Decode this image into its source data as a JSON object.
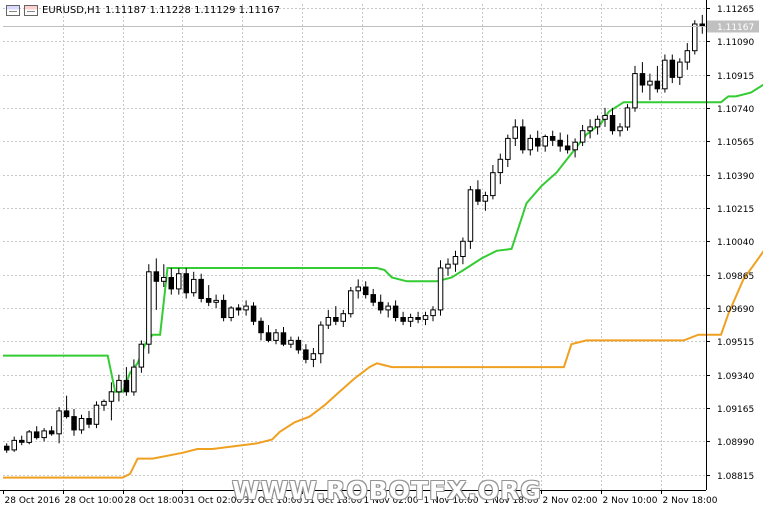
{
  "header": {
    "icon_left": "window-icon",
    "icon_right": "window-red-icon",
    "symbol": "EURUSD,H1",
    "ohlc": "1.11187 1.11228 1.11129 1.11167"
  },
  "watermark": "WWW.ROBOTFX.ORG",
  "chart_data": {
    "type": "candlestick",
    "symbol": "EURUSD",
    "timeframe": "H1",
    "current_price_label": "1.11167",
    "colors": {
      "background": "#ffffff",
      "grid": "#c8c8c8",
      "upper_line": "#33cc33",
      "lower_line": "#f0a020",
      "bull_body": "#ffffff",
      "bear_body": "#000000",
      "price_label_bg": "#c0c0c0"
    },
    "grid": true,
    "ylim": [
      1.08735,
      1.11285
    ],
    "y_ticks": [
      "1.11265",
      "1.11090",
      "1.10915",
      "1.10740",
      "1.10565",
      "1.10390",
      "1.10215",
      "1.10040",
      "1.09865",
      "1.09690",
      "1.09515",
      "1.09340",
      "1.09165",
      "1.08990",
      "1.08815"
    ],
    "x_ticks": [
      "28 Oct 2016",
      "28 Oct 10:00",
      "28 Oct 18:00",
      "31 Oct 02:00",
      "31 Oct 10:00",
      "31 Oct 18:00",
      "1 Nov 02:00",
      "1 Nov 10:00",
      "1 Nov 18:00",
      "2 Nov 02:00",
      "2 Nov 10:00",
      "2 Nov 18:00"
    ],
    "candles": [
      [
        1.08965,
        1.0898,
        1.0893,
        1.08945
      ],
      [
        1.08945,
        1.09015,
        1.08935,
        1.08995
      ],
      [
        1.08995,
        1.0902,
        1.0897,
        1.08985
      ],
      [
        1.08985,
        1.0905,
        1.08975,
        1.0904
      ],
      [
        1.0904,
        1.0907,
        1.09,
        1.0901
      ],
      [
        1.0901,
        1.0906,
        1.0899,
        1.09045
      ],
      [
        1.09045,
        1.0907,
        1.0902,
        1.0903
      ],
      [
        1.0903,
        1.0917,
        1.0898,
        1.0915
      ],
      [
        1.0915,
        1.0923,
        1.0911,
        1.0912
      ],
      [
        1.0912,
        1.0916,
        1.0902,
        1.0905
      ],
      [
        1.0905,
        1.0913,
        1.0903,
        1.0911
      ],
      [
        1.0911,
        1.0915,
        1.0906,
        1.0908
      ],
      [
        1.0908,
        1.092,
        1.0906,
        1.0918
      ],
      [
        1.0918,
        1.0921,
        1.0915,
        1.092
      ],
      [
        1.092,
        1.093,
        1.091,
        1.0925
      ],
      [
        1.0925,
        1.0934,
        1.092,
        1.0931
      ],
      [
        1.0931,
        1.0938,
        1.0923,
        1.0925
      ],
      [
        1.0925,
        1.0942,
        1.0923,
        1.0938
      ],
      [
        1.0938,
        1.0952,
        1.0935,
        1.095
      ],
      [
        1.095,
        1.0992,
        1.0945,
        1.0988
      ],
      [
        1.0988,
        1.0995,
        1.0968,
        1.0983
      ],
      [
        1.0983,
        1.0992,
        1.098,
        1.0985
      ],
      [
        1.0985,
        1.099,
        1.0976,
        1.0979
      ],
      [
        1.0979,
        1.099,
        1.0976,
        1.0987
      ],
      [
        1.0987,
        1.099,
        1.0974,
        1.0977
      ],
      [
        1.0977,
        1.0988,
        1.0975,
        1.0984
      ],
      [
        1.0984,
        1.0987,
        1.0972,
        1.0974
      ],
      [
        1.0974,
        1.0981,
        1.097,
        1.0972
      ],
      [
        1.0972,
        1.0976,
        1.0969,
        1.0973
      ],
      [
        1.0973,
        1.0976,
        1.0962,
        1.0964
      ],
      [
        1.0964,
        1.097,
        1.0962,
        1.0969
      ],
      [
        1.0969,
        1.0971,
        1.0965,
        1.0968
      ],
      [
        1.0968,
        1.0973,
        1.0965,
        1.097
      ],
      [
        1.097,
        1.0972,
        1.096,
        1.0962
      ],
      [
        1.0962,
        1.0964,
        1.0952,
        1.0956
      ],
      [
        1.0956,
        1.096,
        1.0951,
        1.0952
      ],
      [
        1.0952,
        1.0958,
        1.095,
        1.0956
      ],
      [
        1.0956,
        1.0959,
        1.0949,
        1.095
      ],
      [
        1.095,
        1.0954,
        1.0948,
        1.0952
      ],
      [
        1.0952,
        1.0954,
        1.0945,
        1.0947
      ],
      [
        1.0947,
        1.095,
        1.094,
        1.0942
      ],
      [
        1.0942,
        1.0948,
        1.0938,
        1.0945
      ],
      [
        1.0945,
        1.0962,
        1.094,
        1.096
      ],
      [
        1.096,
        1.0968,
        1.0958,
        1.0964
      ],
      [
        1.0964,
        1.097,
        1.096,
        1.0962
      ],
      [
        1.0962,
        1.0968,
        1.0959,
        1.0966
      ],
      [
        1.0966,
        1.098,
        1.0964,
        1.0978
      ],
      [
        1.0978,
        1.0984,
        1.0974,
        1.098
      ],
      [
        1.098,
        1.0983,
        1.0974,
        1.0976
      ],
      [
        1.0976,
        1.0979,
        1.097,
        1.0972
      ],
      [
        1.0972,
        1.0976,
        1.0966,
        1.0968
      ],
      [
        1.0968,
        1.0972,
        1.0964,
        1.097
      ],
      [
        1.097,
        1.0973,
        1.0962,
        1.0964
      ],
      [
        1.0964,
        1.0967,
        1.096,
        1.0962
      ],
      [
        1.0962,
        1.0966,
        1.0959,
        1.0964
      ],
      [
        1.0964,
        1.0967,
        1.0961,
        1.0963
      ],
      [
        1.0963,
        1.0967,
        1.096,
        1.0965
      ],
      [
        1.0965,
        1.097,
        1.0962,
        1.0968
      ],
      [
        1.0968,
        1.0994,
        1.0965,
        1.099
      ],
      [
        1.099,
        1.0995,
        1.0986,
        1.0992
      ],
      [
        1.0992,
        1.0999,
        1.0988,
        1.0996
      ],
      [
        1.0996,
        1.1006,
        1.0992,
        1.1004
      ],
      [
        1.1004,
        1.1033,
        1.1,
        1.1031
      ],
      [
        1.1031,
        1.1036,
        1.1023,
        1.1025
      ],
      [
        1.1025,
        1.103,
        1.102,
        1.1028
      ],
      [
        1.1028,
        1.1044,
        1.1026,
        1.104
      ],
      [
        1.104,
        1.105,
        1.1034,
        1.1047
      ],
      [
        1.1047,
        1.106,
        1.1043,
        1.1058
      ],
      [
        1.1058,
        1.1068,
        1.1054,
        1.1064
      ],
      [
        1.1064,
        1.1068,
        1.105,
        1.1052
      ],
      [
        1.1052,
        1.106,
        1.1049,
        1.1058
      ],
      [
        1.1058,
        1.1062,
        1.1051,
        1.1054
      ],
      [
        1.1054,
        1.106,
        1.1051,
        1.1059
      ],
      [
        1.1059,
        1.1062,
        1.1054,
        1.1057
      ],
      [
        1.1057,
        1.1061,
        1.1051,
        1.1054
      ],
      [
        1.1054,
        1.106,
        1.105,
        1.1052
      ],
      [
        1.1052,
        1.1058,
        1.1048,
        1.1056
      ],
      [
        1.1056,
        1.1065,
        1.1054,
        1.1062
      ],
      [
        1.1062,
        1.1068,
        1.1058,
        1.1064
      ],
      [
        1.1064,
        1.107,
        1.106,
        1.1068
      ],
      [
        1.1068,
        1.1074,
        1.1064,
        1.107
      ],
      [
        1.107,
        1.1074,
        1.106,
        1.1062
      ],
      [
        1.1062,
        1.1066,
        1.1059,
        1.1064
      ],
      [
        1.1064,
        1.1076,
        1.1062,
        1.1074
      ],
      [
        1.1074,
        1.1096,
        1.1072,
        1.1092
      ],
      [
        1.1092,
        1.1098,
        1.1082,
        1.1086
      ],
      [
        1.1086,
        1.1092,
        1.1078,
        1.1088
      ],
      [
        1.1088,
        1.1096,
        1.1082,
        1.1084
      ],
      [
        1.1084,
        1.1102,
        1.1082,
        1.1099
      ],
      [
        1.1099,
        1.1102,
        1.1087,
        1.109
      ],
      [
        1.109,
        1.11,
        1.1086,
        1.1098
      ],
      [
        1.1098,
        1.1108,
        1.1094,
        1.1104
      ],
      [
        1.1104,
        1.112,
        1.1102,
        1.1118
      ],
      [
        1.1118,
        1.11228,
        1.11129,
        1.11167
      ]
    ],
    "upper_line": [
      [
        0,
        1.0944
      ],
      [
        14,
        1.0944
      ],
      [
        15,
        1.0925
      ],
      [
        16,
        1.0925
      ],
      [
        17,
        1.0935
      ],
      [
        18,
        1.094
      ],
      [
        19,
        1.095
      ],
      [
        20,
        1.0955
      ],
      [
        21,
        1.0955
      ],
      [
        22,
        1.099
      ],
      [
        23,
        1.099
      ],
      [
        24,
        1.099
      ],
      [
        50,
        1.099
      ],
      [
        51,
        1.0989
      ],
      [
        52,
        1.0985
      ],
      [
        54,
        1.0983
      ],
      [
        55,
        1.0983
      ],
      [
        58,
        1.0983
      ],
      [
        60,
        1.0985
      ],
      [
        62,
        1.099
      ],
      [
        64,
        1.0995
      ],
      [
        66,
        1.0999
      ],
      [
        68,
        1.1
      ],
      [
        70,
        1.1024
      ],
      [
        72,
        1.1033
      ],
      [
        74,
        1.104
      ],
      [
        76,
        1.105
      ],
      [
        78,
        1.106
      ],
      [
        80,
        1.1066
      ],
      [
        81,
        1.1072
      ],
      [
        83,
        1.1077
      ],
      [
        84,
        1.1077
      ],
      [
        96,
        1.1077
      ],
      [
        97,
        1.108
      ],
      [
        98,
        1.108
      ],
      [
        100,
        1.1082
      ],
      [
        102,
        1.1087
      ],
      [
        103,
        1.1087
      ],
      [
        104,
        1.1087
      ],
      [
        105,
        1.11005
      ],
      [
        108,
        1.11005
      ],
      [
        110,
        1.1105
      ],
      [
        111,
        1.1108
      ],
      [
        112,
        1.1115
      ],
      [
        114,
        1.1125
      ]
    ],
    "lower_line": [
      [
        0,
        1.088
      ],
      [
        16,
        1.088
      ],
      [
        17,
        1.0882
      ],
      [
        18,
        1.089
      ],
      [
        20,
        1.089
      ],
      [
        24,
        1.0893
      ],
      [
        26,
        1.0895
      ],
      [
        28,
        1.0895
      ],
      [
        34,
        1.0898
      ],
      [
        36,
        1.09
      ],
      [
        37,
        1.0904
      ],
      [
        39,
        1.0909
      ],
      [
        41,
        1.0912
      ],
      [
        43,
        1.0918
      ],
      [
        45,
        1.0925
      ],
      [
        47,
        1.0932
      ],
      [
        49,
        1.0938
      ],
      [
        50,
        1.094
      ],
      [
        52,
        1.0938
      ],
      [
        75,
        1.0938
      ],
      [
        76,
        1.095
      ],
      [
        78,
        1.0952
      ],
      [
        91,
        1.0952
      ],
      [
        93,
        1.0955
      ],
      [
        96,
        1.0955
      ],
      [
        97,
        1.0966
      ],
      [
        99,
        1.0984
      ],
      [
        101,
        1.0995
      ],
      [
        103,
        1.1006
      ],
      [
        104,
        1.1021
      ],
      [
        105,
        1.1024
      ],
      [
        107,
        1.1037
      ],
      [
        109,
        1.1044
      ],
      [
        110,
        1.105
      ],
      [
        114,
        1.105
      ]
    ]
  }
}
